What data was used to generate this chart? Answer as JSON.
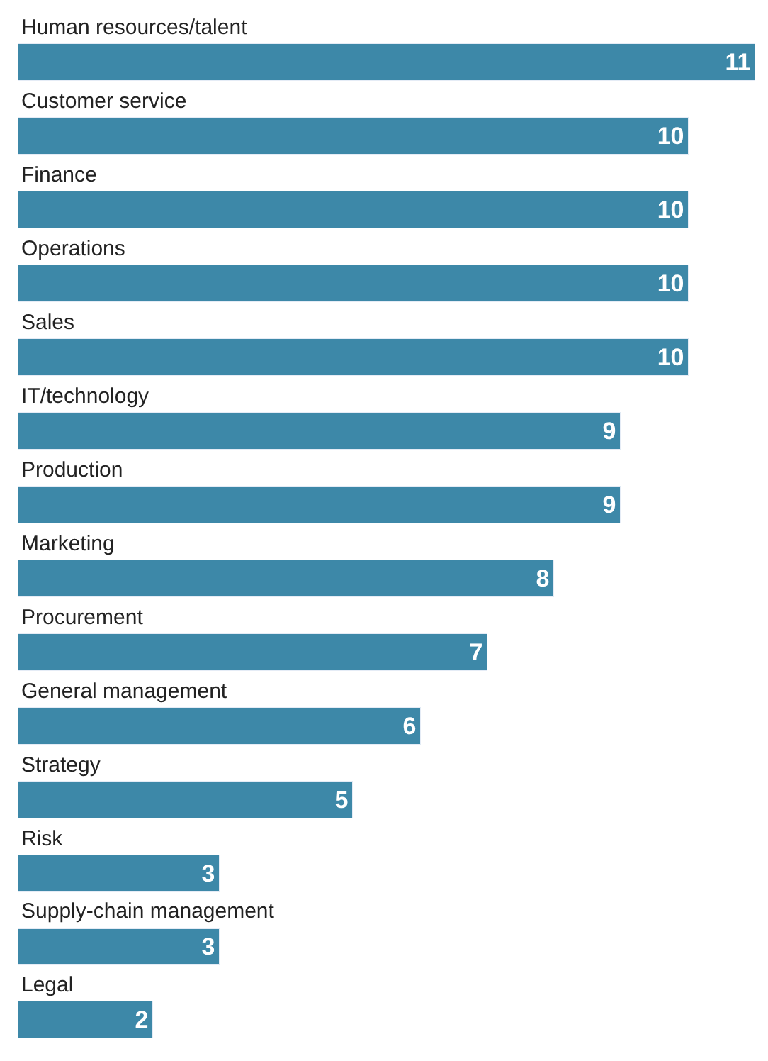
{
  "chart_data": {
    "type": "bar",
    "orientation": "horizontal",
    "categories": [
      "Human resources/talent",
      "Customer service",
      "Finance",
      "Operations",
      "Sales",
      "IT/technology",
      "Production",
      "Marketing",
      "Procurement",
      "General management",
      "Strategy",
      "Risk",
      "Supply-chain management",
      "Legal"
    ],
    "values": [
      11,
      10,
      10,
      10,
      10,
      9,
      9,
      8,
      7,
      6,
      5,
      3,
      3,
      2
    ],
    "color": "#3d88a8",
    "data_labels": true
  }
}
